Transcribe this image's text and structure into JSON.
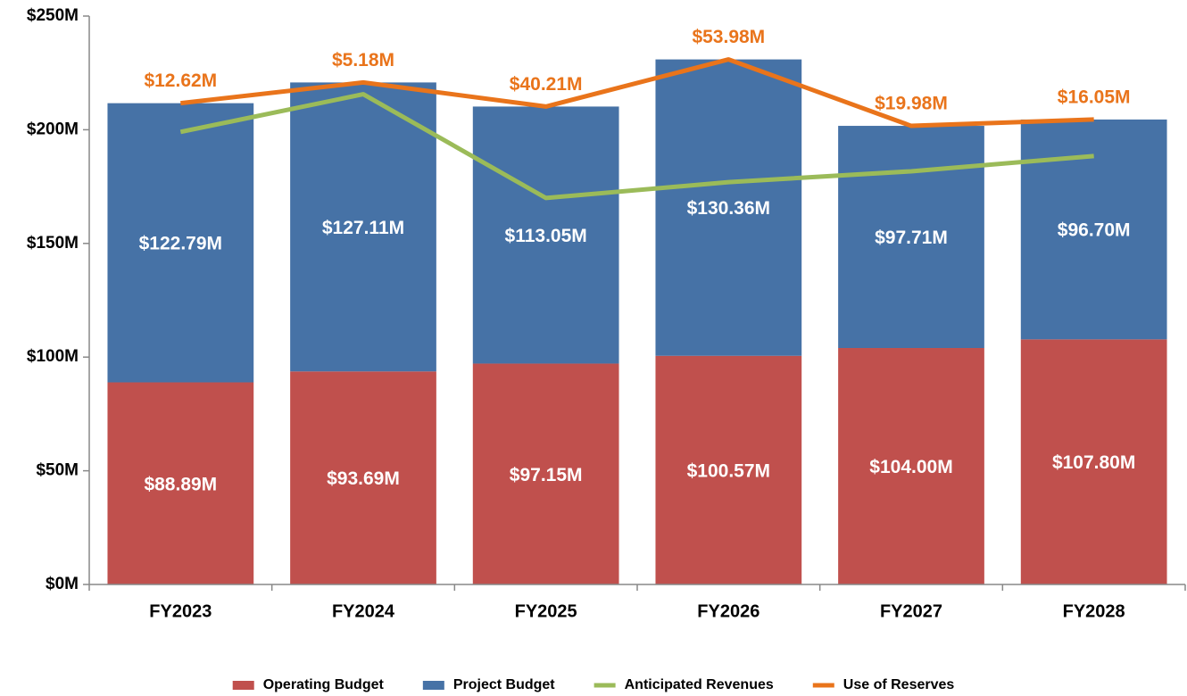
{
  "chart_data": {
    "type": "bar",
    "categories": [
      "FY2023",
      "FY2024",
      "FY2025",
      "FY2026",
      "FY2027",
      "FY2028"
    ],
    "series": [
      {
        "name": "Operating Budget",
        "kind": "bar",
        "color": "#c0504d",
        "values": [
          88.89,
          93.69,
          97.15,
          100.57,
          104.0,
          107.8
        ],
        "value_labels": [
          "$88.89M",
          "$93.69M",
          "$97.15M",
          "$100.57M",
          "$104.00M",
          "$107.80M"
        ]
      },
      {
        "name": "Project Budget",
        "kind": "bar",
        "color": "#4672a6",
        "values": [
          122.79,
          127.11,
          113.05,
          130.36,
          97.71,
          96.7
        ],
        "value_labels": [
          "$122.79M",
          "$127.11M",
          "$113.05M",
          "$130.36M",
          "$97.71M",
          "$96.70M"
        ]
      },
      {
        "name": "Anticipated Revenues",
        "kind": "line",
        "color": "#9bbb59",
        "values": [
          199.06,
          215.62,
          169.99,
          176.95,
          181.73,
          188.45
        ]
      },
      {
        "name": "Use of Reserves",
        "kind": "line",
        "stacked": true,
        "color": "#e9741b",
        "values": [
          12.62,
          5.18,
          40.21,
          53.98,
          19.98,
          16.05
        ],
        "value_labels": [
          "$12.62M",
          "$5.18M",
          "$40.21M",
          "$53.98M",
          "$19.98M",
          "$16.05M"
        ]
      }
    ],
    "ylim": [
      0,
      250
    ],
    "yticks": [
      {
        "value": 0,
        "label": "$0M"
      },
      {
        "value": 50,
        "label": "$50M"
      },
      {
        "value": 100,
        "label": "$100M"
      },
      {
        "value": 150,
        "label": "$150M"
      },
      {
        "value": 200,
        "label": "$200M"
      },
      {
        "value": 250,
        "label": "$250M"
      }
    ],
    "legend": "bottom"
  }
}
